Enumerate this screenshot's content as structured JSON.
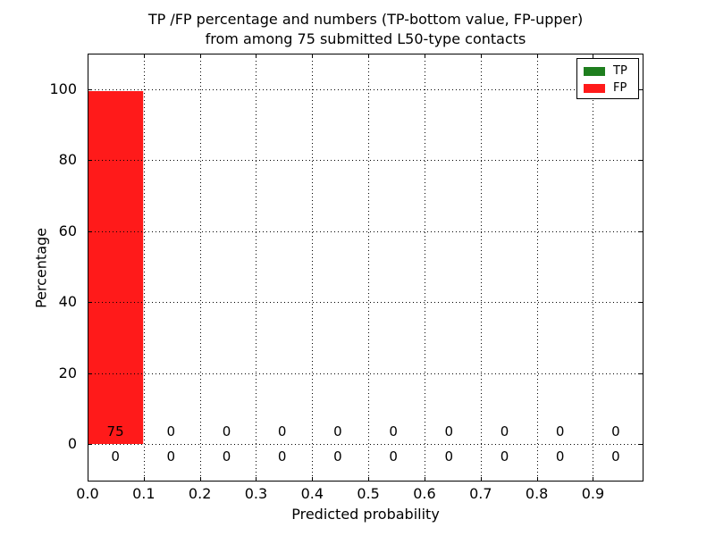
{
  "figure": {
    "background": "#ffffff",
    "frame_color": "#000000"
  },
  "chart_data": {
    "type": "bar",
    "stacked": true,
    "title_line1": "TP /FP percentage and numbers (TP-bottom value, FP-upper)",
    "title_line2": "from among 75 submitted L50-type contacts",
    "xlabel": "Predicted probability",
    "ylabel": "Percentage",
    "xlim": [
      0,
      0.99
    ],
    "ylim": [
      -10.6,
      110.1
    ],
    "n_bins": 10,
    "xtick_values": [
      0.0,
      0.1,
      0.2,
      0.3,
      0.4,
      0.5,
      0.6,
      0.7,
      0.8,
      0.9
    ],
    "xtick_labels": [
      "0.0",
      "0.1",
      "0.2",
      "0.3",
      "0.4",
      "0.5",
      "0.6",
      "0.7",
      "0.8",
      "0.9"
    ],
    "ytick_values": [
      0,
      20,
      40,
      60,
      80,
      100
    ],
    "ytick_labels": [
      "0",
      "20",
      "40",
      "60",
      "80",
      "100"
    ],
    "grid": {
      "linestyle": "dotted",
      "color": "#000000"
    },
    "legend": {
      "position": "upper right",
      "entries": [
        "TP",
        "FP"
      ]
    },
    "series": [
      {
        "name": "TP",
        "color": "#1e7e1e",
        "percentages": [
          0,
          0,
          0,
          0,
          0,
          0,
          0,
          0,
          0,
          0
        ],
        "counts": [
          0,
          0,
          0,
          0,
          0,
          0,
          0,
          0,
          0,
          0
        ],
        "count_row": "bottom"
      },
      {
        "name": "FP",
        "color": "#ff1a1a",
        "percentages": [
          99.5,
          0,
          0,
          0,
          0,
          0,
          0,
          0,
          0,
          0
        ],
        "counts": [
          75,
          0,
          0,
          0,
          0,
          0,
          0,
          0,
          0,
          0
        ],
        "count_row": "upper"
      }
    ]
  }
}
